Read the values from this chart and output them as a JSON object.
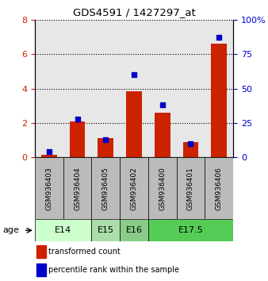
{
  "title": "GDS4591 / 1427297_at",
  "samples": [
    "GSM936403",
    "GSM936404",
    "GSM936405",
    "GSM936402",
    "GSM936400",
    "GSM936401",
    "GSM936406"
  ],
  "transformed_count": [
    0.15,
    2.1,
    1.1,
    3.85,
    2.6,
    0.9,
    6.6
  ],
  "percentile_rank": [
    4,
    28,
    13,
    60,
    38,
    10,
    87
  ],
  "left_ylim": [
    0,
    8
  ],
  "left_yticks": [
    0,
    2,
    4,
    6,
    8
  ],
  "right_ylim": [
    0,
    100
  ],
  "right_yticks": [
    0,
    25,
    50,
    75,
    100
  ],
  "bar_color": "#cc2200",
  "dot_color": "#0000cc",
  "age_groups": [
    {
      "label": "E14",
      "samples": [
        0,
        1
      ],
      "color": "#ccffcc"
    },
    {
      "label": "E15",
      "samples": [
        2
      ],
      "color": "#aaddaa"
    },
    {
      "label": "E16",
      "samples": [
        3
      ],
      "color": "#88cc88"
    },
    {
      "label": "E17.5",
      "samples": [
        4,
        5,
        6
      ],
      "color": "#55cc55"
    }
  ],
  "age_label": "age",
  "legend_items": [
    {
      "label": "transformed count",
      "color": "#cc2200"
    },
    {
      "label": "percentile rank within the sample",
      "color": "#0000cc"
    }
  ],
  "sample_bg_color": "#bbbbbb",
  "bar_width": 0.55,
  "dot_size": 20
}
